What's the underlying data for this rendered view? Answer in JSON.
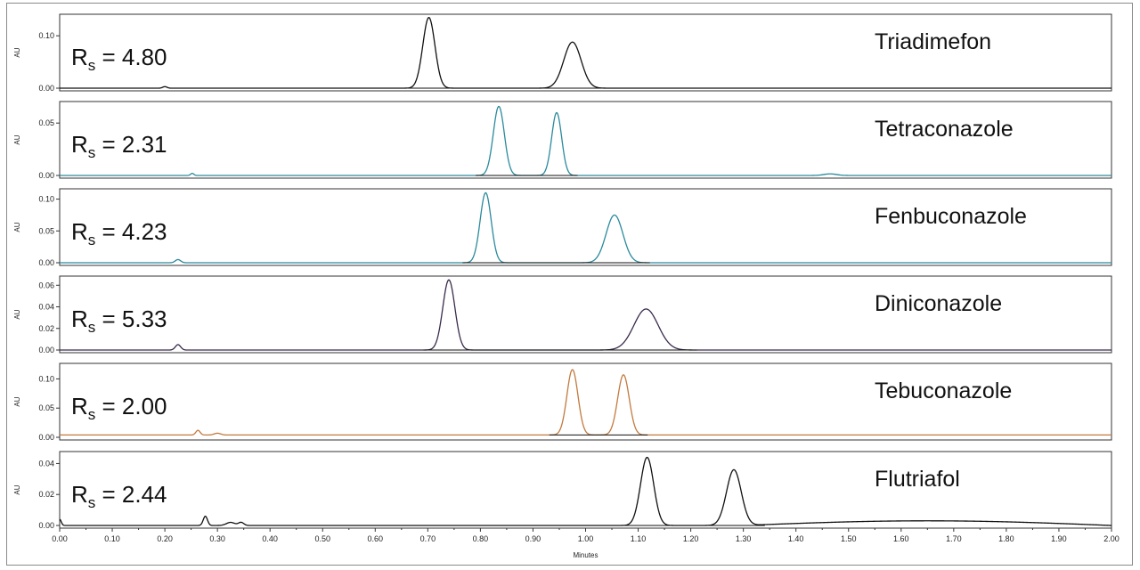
{
  "chart_data": {
    "type": "line",
    "xlabel": "Minutes",
    "xlim": [
      0.0,
      2.0
    ],
    "x_ticks": [
      "0.00",
      "0.10",
      "0.20",
      "0.30",
      "0.40",
      "0.50",
      "0.60",
      "0.70",
      "0.80",
      "0.90",
      "1.00",
      "1.10",
      "1.20",
      "1.30",
      "1.40",
      "1.50",
      "1.60",
      "1.70",
      "1.80",
      "1.90",
      "2.00"
    ],
    "panels": [
      {
        "name": "Triadimefon",
        "rs_value": "4.80",
        "ylabel": "AU",
        "ylim": [
          0,
          0.136
        ],
        "y_ticks": [
          "0.10",
          "0.00"
        ],
        "y_tick_values": [
          0.1,
          0.0
        ],
        "color": "#111111",
        "baseline": 0.0,
        "drift": 0.0,
        "peaks": [
          {
            "rt": 0.702,
            "height": 0.135,
            "sigma": 0.0115
          },
          {
            "rt": 0.975,
            "height": 0.088,
            "sigma": 0.0165
          },
          {
            "rt": 0.2,
            "height": 0.003,
            "sigma": 0.004
          }
        ]
      },
      {
        "name": "Tetraconazole",
        "rs_value": "2.31",
        "ylabel": "AU",
        "ylim": [
          0,
          0.068
        ],
        "y_ticks": [
          "0.05",
          "0.00"
        ],
        "y_tick_values": [
          0.05,
          0.0
        ],
        "color": "#2a8a9c",
        "baseline": 0.0,
        "drift": 0.0,
        "peaks": [
          {
            "rt": 0.835,
            "height": 0.066,
            "sigma": 0.0105
          },
          {
            "rt": 0.945,
            "height": 0.06,
            "sigma": 0.0095
          },
          {
            "rt": 0.252,
            "height": 0.002,
            "sigma": 0.003
          },
          {
            "rt": 1.465,
            "height": 0.0015,
            "sigma": 0.012
          }
        ]
      },
      {
        "name": "Fenbuconazole",
        "rs_value": "4.23",
        "ylabel": "AU",
        "ylim": [
          0,
          0.112
        ],
        "y_ticks": [
          "0.10",
          "0.05",
          "0.00"
        ],
        "y_tick_values": [
          0.1,
          0.05,
          0.0
        ],
        "color": "#2a8a9c",
        "baseline": 0.0,
        "drift": 0.0,
        "peaks": [
          {
            "rt": 0.81,
            "height": 0.11,
            "sigma": 0.0105
          },
          {
            "rt": 1.055,
            "height": 0.075,
            "sigma": 0.016
          },
          {
            "rt": 0.225,
            "height": 0.005,
            "sigma": 0.005
          }
        ]
      },
      {
        "name": "Diniconazole",
        "rs_value": "5.33",
        "ylabel": "AU",
        "ylim": [
          0,
          0.066
        ],
        "y_ticks": [
          "0.06",
          "0.04",
          "0.02",
          "0.00"
        ],
        "y_tick_values": [
          0.06,
          0.04,
          0.02,
          0.0
        ],
        "color": "#3a2a4a",
        "baseline": 0.0,
        "drift": 0.0,
        "peaks": [
          {
            "rt": 0.74,
            "height": 0.065,
            "sigma": 0.0115
          },
          {
            "rt": 1.115,
            "height": 0.038,
            "sigma": 0.023
          },
          {
            "rt": 0.225,
            "height": 0.005,
            "sigma": 0.005
          }
        ]
      },
      {
        "name": "Tebuconazole",
        "rs_value": "2.00",
        "ylabel": "AU",
        "ylim": [
          0,
          0.122
        ],
        "y_ticks": [
          "0.10",
          "0.05",
          "0.00"
        ],
        "y_tick_values": [
          0.1,
          0.05,
          0.0
        ],
        "color": "#c27a3e",
        "baseline": 0.004,
        "drift": 0.0,
        "peaks": [
          {
            "rt": 0.975,
            "height": 0.112,
            "sigma": 0.0105
          },
          {
            "rt": 1.072,
            "height": 0.103,
            "sigma": 0.011
          },
          {
            "rt": 0.263,
            "height": 0.008,
            "sigma": 0.004
          },
          {
            "rt": 0.3,
            "height": 0.003,
            "sigma": 0.006
          }
        ]
      },
      {
        "name": "Flutriafol",
        "rs_value": "2.44",
        "ylabel": "AU",
        "ylim": [
          0,
          0.046
        ],
        "y_ticks": [
          "0.04",
          "0.02",
          "0.00"
        ],
        "y_tick_values": [
          0.04,
          0.02,
          0.0
        ],
        "color": "#111111",
        "baseline": 0.0,
        "drift": 0.003,
        "peaks": [
          {
            "rt": 1.117,
            "height": 0.044,
            "sigma": 0.0125
          },
          {
            "rt": 1.282,
            "height": 0.036,
            "sigma": 0.014
          },
          {
            "rt": 0.277,
            "height": 0.006,
            "sigma": 0.004
          },
          {
            "rt": 0.325,
            "height": 0.002,
            "sigma": 0.008
          },
          {
            "rt": 0.345,
            "height": 0.002,
            "sigma": 0.005
          },
          {
            "rt": 0.0,
            "height": 0.004,
            "sigma": 0.003
          }
        ]
      }
    ]
  }
}
